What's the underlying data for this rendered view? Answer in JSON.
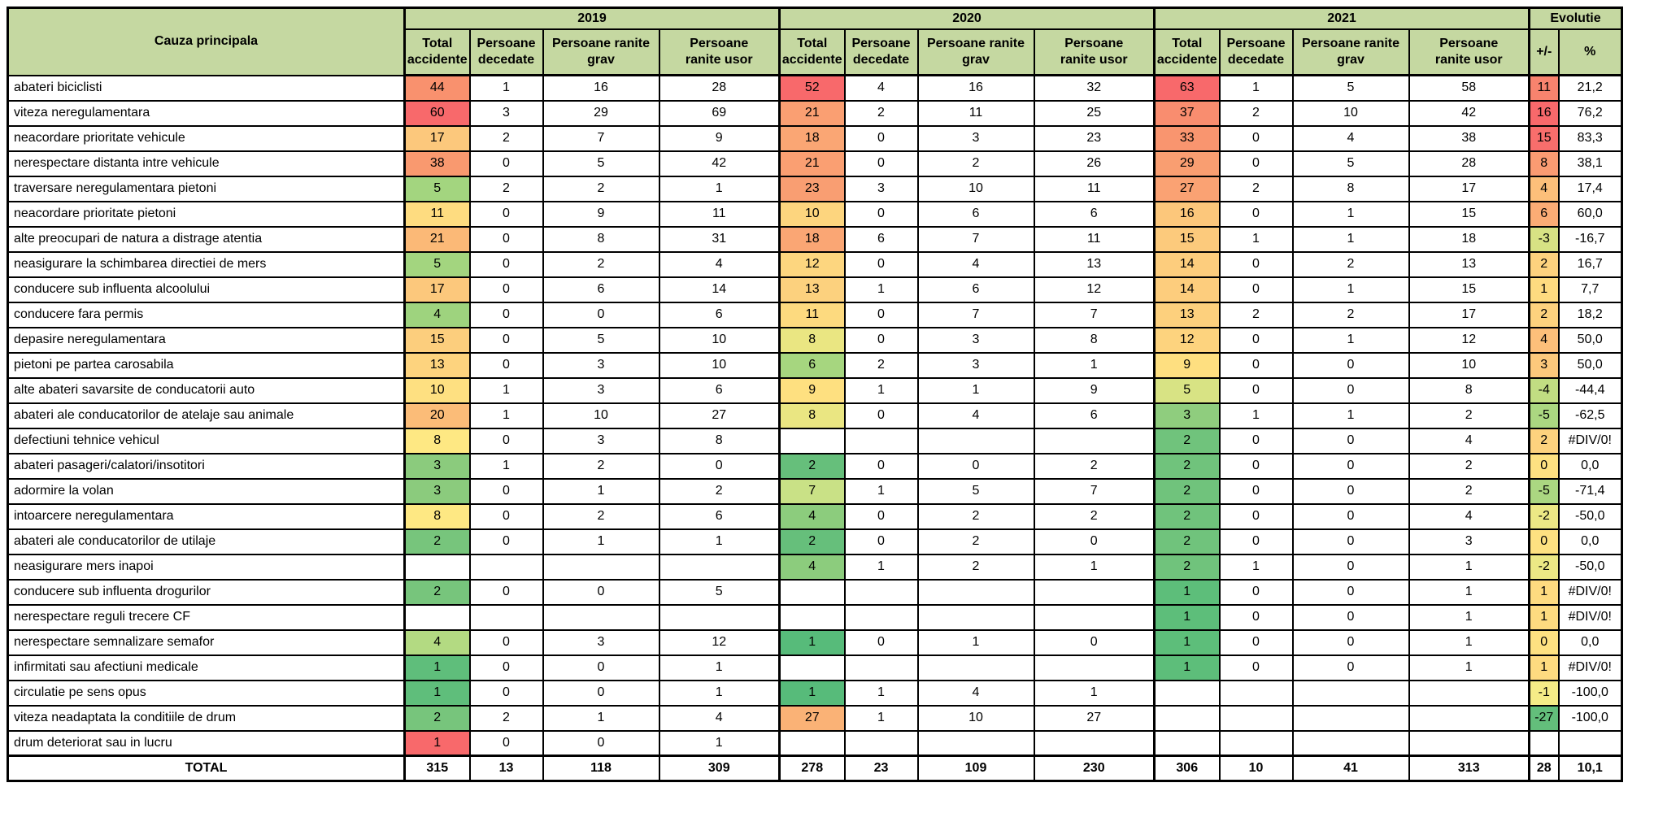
{
  "chart_data": {
    "type": "table",
    "header": {
      "cause_label": "Cauza principala",
      "years": [
        "2019",
        "2020",
        "2021"
      ],
      "evolutie": "Evolutie",
      "subs": [
        {
          "l1": "Total",
          "l2": "accidente"
        },
        {
          "l1": "Persoane",
          "l2": "decedate"
        },
        {
          "l1": "Persoane ranite",
          "l2": "grav"
        },
        {
          "l1": "Persoane",
          "l2": "ranite usor"
        }
      ],
      "plusminus": "+/-",
      "percent": "%"
    },
    "colors": {
      "header_bg": "#C5D8A1",
      "border": "#000000"
    },
    "rows": [
      {
        "cause": "abateri biciclisti",
        "y19": [
          "44",
          "1",
          "16",
          "28",
          "#F9916E"
        ],
        "y20": [
          "52",
          "4",
          "16",
          "32",
          "#F8696B"
        ],
        "y21": [
          "63",
          "1",
          "5",
          "58",
          "#F8696B"
        ],
        "ev": [
          "11",
          "#F8836E",
          "21,2"
        ]
      },
      {
        "cause": "viteza neregulamentara",
        "y19": [
          "60",
          "3",
          "29",
          "69",
          "#F8696B"
        ],
        "y20": [
          "21",
          "2",
          "11",
          "25",
          "#FA9F72"
        ],
        "y21": [
          "37",
          "2",
          "10",
          "42",
          "#F98D6F"
        ],
        "ev": [
          "16",
          "#F8696B",
          "76,2"
        ]
      },
      {
        "cause": "neacordare prioritate vehicule",
        "y19": [
          "17",
          "2",
          "7",
          "9",
          "#FCC87C"
        ],
        "y20": [
          "18",
          "0",
          "3",
          "23",
          "#FAA674"
        ],
        "y21": [
          "33",
          "0",
          "4",
          "38",
          "#F9956F"
        ],
        "ev": [
          "15",
          "#F86E6C",
          "83,3"
        ]
      },
      {
        "cause": "nerespectare distanta intre vehicule",
        "y19": [
          "38",
          "0",
          "5",
          "42",
          "#F9996F"
        ],
        "y20": [
          "21",
          "0",
          "2",
          "26",
          "#FA9F72"
        ],
        "y21": [
          "29",
          "0",
          "5",
          "28",
          "#F99E71"
        ],
        "ev": [
          "8",
          "#FA9B72",
          "38,1"
        ]
      },
      {
        "cause": "traversare neregulamentara pietoni",
        "y19": [
          "5",
          "2",
          "2",
          "1",
          "#A3D57F"
        ],
        "y20": [
          "23",
          "3",
          "10",
          "11",
          "#F99E72"
        ],
        "y21": [
          "27",
          "2",
          "8",
          "17",
          "#FAA273"
        ],
        "ev": [
          "4",
          "#FCBF7A",
          "17,4"
        ]
      },
      {
        "cause": "neacordare prioritate pietoni",
        "y19": [
          "11",
          "0",
          "9",
          "11",
          "#FEDC80"
        ],
        "y20": [
          "10",
          "0",
          "6",
          "6",
          "#FDD57E"
        ],
        "y21": [
          "16",
          "0",
          "1",
          "15",
          "#FCC77B"
        ],
        "ev": [
          "6",
          "#FBAC75",
          "60,0"
        ]
      },
      {
        "cause": "alte preocupari de natura a distrage atentia",
        "y19": [
          "21",
          "0",
          "8",
          "31",
          "#FBB977"
        ],
        "y20": [
          "18",
          "6",
          "7",
          "11",
          "#FAA674"
        ],
        "y21": [
          "15",
          "1",
          "1",
          "18",
          "#FCCA7C"
        ],
        "ev": [
          "-3",
          "#D7E284",
          "-16,7"
        ]
      },
      {
        "cause": "neasigurare la schimbarea directiei de mers",
        "y19": [
          "5",
          "0",
          "2",
          "4",
          "#A3D57F"
        ],
        "y20": [
          "12",
          "0",
          "4",
          "13",
          "#FDD67F"
        ],
        "y21": [
          "14",
          "0",
          "2",
          "13",
          "#FDCD7D"
        ],
        "ev": [
          "2",
          "#FDD27E",
          "16,7"
        ]
      },
      {
        "cause": "conducere sub influenta alcoolului",
        "y19": [
          "17",
          "0",
          "6",
          "14",
          "#FCC87C"
        ],
        "y20": [
          "13",
          "1",
          "6",
          "12",
          "#FCD17E"
        ],
        "y21": [
          "14",
          "0",
          "1",
          "15",
          "#FDCD7D"
        ],
        "ev": [
          "1",
          "#FEDB80",
          "7,7"
        ]
      },
      {
        "cause": "conducere fara permis",
        "y19": [
          "4",
          "0",
          "0",
          "6",
          "#9ED37E"
        ],
        "y20": [
          "11",
          "0",
          "7",
          "7",
          "#FDDA7F"
        ],
        "y21": [
          "13",
          "2",
          "2",
          "17",
          "#FDD07D"
        ],
        "ev": [
          "2",
          "#FDD27E",
          "18,2"
        ]
      },
      {
        "cause": "depasire neregulamentara",
        "y19": [
          "15",
          "0",
          "5",
          "10",
          "#FCCE7D"
        ],
        "y20": [
          "8",
          "0",
          "3",
          "8",
          "#EAE682"
        ],
        "y21": [
          "12",
          "0",
          "1",
          "12",
          "#FDD37E"
        ],
        "ev": [
          "4",
          "#FCBF7A",
          "50,0"
        ]
      },
      {
        "cause": "pietoni pe partea carosabila",
        "y19": [
          "13",
          "0",
          "3",
          "10",
          "#FDD37E"
        ],
        "y20": [
          "6",
          "2",
          "3",
          "1",
          "#A6D67F"
        ],
        "y21": [
          "9",
          "0",
          "0",
          "10",
          "#FEDF80"
        ],
        "ev": [
          "3",
          "#FCC97C",
          "50,0"
        ]
      },
      {
        "cause": "alte abateri savarsite de conducatorii auto",
        "y19": [
          "10",
          "1",
          "3",
          "6",
          "#FEE081"
        ],
        "y20": [
          "9",
          "1",
          "1",
          "9",
          "#FEE080"
        ],
        "y21": [
          "5",
          "0",
          "0",
          "8",
          "#D8E384"
        ],
        "ev": [
          "-4",
          "#C1DD82",
          "-44,4"
        ]
      },
      {
        "cause": "abateri ale conducatorilor de atelaje sau animale",
        "y19": [
          "20",
          "1",
          "10",
          "27",
          "#FBBC78"
        ],
        "y20": [
          "8",
          "0",
          "4",
          "6",
          "#EAE682"
        ],
        "y21": [
          "3",
          "1",
          "1",
          "2",
          "#8FCD7E"
        ],
        "ev": [
          "-5",
          "#ABD781",
          "-62,5"
        ]
      },
      {
        "cause": "defectiuni tehnice vehicul",
        "y19": [
          "8",
          "0",
          "3",
          "8",
          "#FEE883"
        ],
        "y20": [
          "",
          "",
          "",
          "",
          ""
        ],
        "y21": [
          "2",
          "0",
          "0",
          "4",
          "#70C37C"
        ],
        "ev": [
          "2",
          "#FDD27E",
          "#DIV/0!"
        ]
      },
      {
        "cause": "abateri pasageri/calatori/insotitori",
        "y19": [
          "3",
          "1",
          "2",
          "0",
          "#8BCB7D"
        ],
        "y20": [
          "2",
          "0",
          "0",
          "2",
          "#66BF7B"
        ],
        "y21": [
          "2",
          "0",
          "0",
          "2",
          "#70C37C"
        ],
        "ev": [
          "0",
          "#FEE181",
          "0,0"
        ]
      },
      {
        "cause": "adormire la volan",
        "y19": [
          "3",
          "0",
          "1",
          "2",
          "#8BCB7D"
        ],
        "y20": [
          "7",
          "1",
          "5",
          "7",
          "#C9E186"
        ],
        "y21": [
          "2",
          "0",
          "0",
          "2",
          "#70C37C"
        ],
        "ev": [
          "-5",
          "#ABD781",
          "-71,4"
        ]
      },
      {
        "cause": "intoarcere neregulamentara",
        "y19": [
          "8",
          "0",
          "2",
          "6",
          "#FEE883"
        ],
        "y20": [
          "4",
          "0",
          "2",
          "2",
          "#8CCC7D"
        ],
        "y21": [
          "2",
          "0",
          "0",
          "4",
          "#70C37C"
        ],
        "ev": [
          "-2",
          "#ECE885",
          "-50,0"
        ]
      },
      {
        "cause": "abateri ale conducatorilor de utilaje",
        "y19": [
          "2",
          "0",
          "1",
          "1",
          "#77C57C"
        ],
        "y20": [
          "2",
          "0",
          "2",
          "0",
          "#66BF7B"
        ],
        "y21": [
          "2",
          "0",
          "0",
          "3",
          "#70C37C"
        ],
        "ev": [
          "0",
          "#FEE181",
          "0,0"
        ]
      },
      {
        "cause": "neasigurare mers inapoi",
        "y19": [
          "",
          "",
          "",
          "",
          ""
        ],
        "y20": [
          "4",
          "1",
          "2",
          "1",
          "#8CCC7D"
        ],
        "y21": [
          "2",
          "1",
          "0",
          "1",
          "#70C37C"
        ],
        "ev": [
          "-2",
          "#ECE885",
          "-50,0"
        ]
      },
      {
        "cause": "conducere sub influenta drogurilor",
        "y19": [
          "2",
          "0",
          "0",
          "5",
          "#77C57C"
        ],
        "y20": [
          "",
          "",
          "",
          "",
          ""
        ],
        "y21": [
          "1",
          "0",
          "0",
          "1",
          "#5DBE7A"
        ],
        "ev": [
          "1",
          "#FEDB80",
          "#DIV/0!"
        ]
      },
      {
        "cause": "nerespectare reguli trecere CF",
        "y19": [
          "",
          "",
          "",
          "",
          ""
        ],
        "y20": [
          "",
          "",
          "",
          "",
          ""
        ],
        "y21": [
          "1",
          "0",
          "0",
          "1",
          "#5DBE7A"
        ],
        "ev": [
          "1",
          "#FEDB80",
          "#DIV/0!"
        ]
      },
      {
        "cause": "nerespectare semnalizare semafor",
        "y19": [
          "4",
          "0",
          "3",
          "12",
          "#B3DA82"
        ],
        "y20": [
          "1",
          "0",
          "1",
          "0",
          "#57BB7A"
        ],
        "y21": [
          "1",
          "0",
          "0",
          "1",
          "#5DBE7A"
        ],
        "ev": [
          "0",
          "#FEE181",
          "0,0"
        ]
      },
      {
        "cause": "infirmitati sau afectiuni medicale",
        "y19": [
          "1",
          "0",
          "0",
          "1",
          "#5FBE7B"
        ],
        "y20": [
          "",
          "",
          "",
          "",
          ""
        ],
        "y21": [
          "1",
          "0",
          "0",
          "1",
          "#5DBE7A"
        ],
        "ev": [
          "1",
          "#FEDB80",
          "#DIV/0!"
        ]
      },
      {
        "cause": "circulatie pe sens opus",
        "y19": [
          "1",
          "0",
          "0",
          "1",
          "#5FBE7B"
        ],
        "y20": [
          "1",
          "1",
          "4",
          "1",
          "#57BB7A"
        ],
        "y21": [
          "",
          "",
          "",
          "",
          ""
        ],
        "ev": [
          "-1",
          "#F5EC87",
          "-100,0"
        ]
      },
      {
        "cause": "viteza neadaptata la conditiile de drum",
        "y19": [
          "2",
          "2",
          "1",
          "4",
          "#77C57C"
        ],
        "y20": [
          "27",
          "1",
          "10",
          "27",
          "#FAB276"
        ],
        "y21": [
          "",
          "",
          "",
          "",
          ""
        ],
        "ev": [
          "-27",
          "#63BE7B",
          "-100,0"
        ]
      },
      {
        "cause": "drum deteriorat sau in lucru",
        "y19": [
          "1",
          "0",
          "0",
          "1",
          "#F8696B"
        ],
        "y20": [
          "",
          "",
          "",
          "",
          ""
        ],
        "y21": [
          "",
          "",
          "",
          "",
          ""
        ],
        "ev": [
          "",
          "",
          ""
        ]
      }
    ],
    "total_row": {
      "label": "TOTAL",
      "y19": [
        "315",
        "13",
        "118",
        "309",
        ""
      ],
      "y20": [
        "278",
        "23",
        "109",
        "230",
        ""
      ],
      "y21": [
        "306",
        "10",
        "41",
        "313",
        ""
      ],
      "ev": [
        "28",
        "",
        "10,1"
      ]
    }
  }
}
